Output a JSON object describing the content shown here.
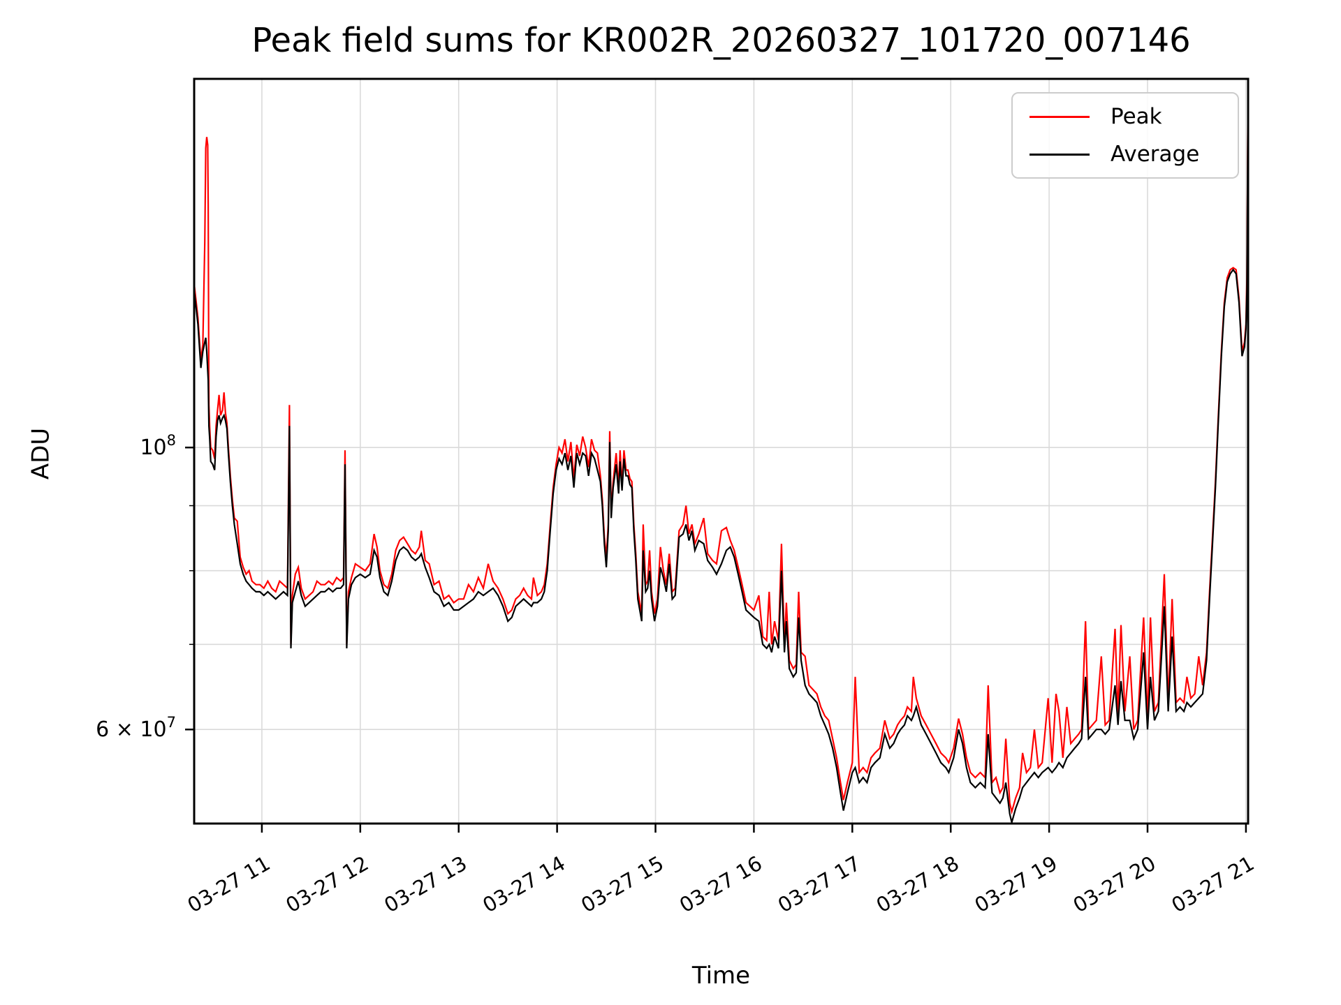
{
  "chart_data": {
    "type": "line",
    "title": "Peak field sums for KR002R_20260327_101720_007146",
    "xlabel": "Time",
    "ylabel": "ADU",
    "yscale": "log",
    "grid": true,
    "legend_position": "upper right",
    "xlim_hours": [
      10.312,
      21.022
    ],
    "ylim": [
      50600000,
      195000000
    ],
    "x_ticks": [
      {
        "v": 11,
        "label": "03-27 11"
      },
      {
        "v": 12,
        "label": "03-27 12"
      },
      {
        "v": 13,
        "label": "03-27 13"
      },
      {
        "v": 14,
        "label": "03-27 14"
      },
      {
        "v": 15,
        "label": "03-27 15"
      },
      {
        "v": 16,
        "label": "03-27 16"
      },
      {
        "v": 17,
        "label": "03-27 17"
      },
      {
        "v": 18,
        "label": "03-27 18"
      },
      {
        "v": 19,
        "label": "03-27 19"
      },
      {
        "v": 20,
        "label": "03-27 20"
      },
      {
        "v": 21,
        "label": "03-27 21"
      }
    ],
    "y_major_ticks": [
      {
        "v": 100000000,
        "label": "10^8"
      },
      {
        "v": 60000000,
        "label": "6 × 10^7"
      }
    ],
    "y_minor_ticks": [
      70000000,
      80000000,
      90000000
    ],
    "grid_y_values": [
      100000000,
      90000000,
      80000000,
      70000000,
      60000000
    ],
    "grid_color": "#dadada",
    "value_scale": 10000000,
    "series": [
      {
        "name": "Peak",
        "color": "#ff0000"
      },
      {
        "name": "Average",
        "color": "#000000"
      }
    ],
    "points": [
      [
        10.312,
        13.3,
        13.45
      ],
      [
        10.35,
        12.5,
        12.65
      ],
      [
        10.38,
        11.55,
        11.7
      ],
      [
        10.4,
        11.9,
        12.05
      ],
      [
        10.42,
        12.1,
        14.5
      ],
      [
        10.43,
        12.2,
        17.2
      ],
      [
        10.44,
        11.9,
        17.55
      ],
      [
        10.45,
        11.5,
        17.3
      ],
      [
        10.455,
        11.3,
        15.5
      ],
      [
        10.462,
        10.4,
        10.8
      ],
      [
        10.47,
        10.15,
        10.35
      ],
      [
        10.48,
        9.75,
        10.0
      ],
      [
        10.5,
        9.7,
        9.95
      ],
      [
        10.52,
        9.6,
        9.8
      ],
      [
        10.535,
        10.2,
        10.4
      ],
      [
        10.55,
        10.5,
        10.7
      ],
      [
        10.565,
        10.6,
        11.0
      ],
      [
        10.58,
        10.45,
        10.6
      ],
      [
        10.6,
        10.55,
        10.7
      ],
      [
        10.615,
        10.6,
        11.05
      ],
      [
        10.63,
        10.5,
        10.65
      ],
      [
        10.645,
        10.35,
        10.45
      ],
      [
        10.66,
        9.9,
        10.0
      ],
      [
        10.68,
        9.4,
        9.5
      ],
      [
        10.7,
        9.0,
        9.1
      ],
      [
        10.72,
        8.7,
        8.8
      ],
      [
        10.75,
        8.4,
        8.75
      ],
      [
        10.78,
        8.1,
        8.2
      ],
      [
        10.81,
        7.95,
        8.05
      ],
      [
        10.84,
        7.85,
        7.95
      ],
      [
        10.87,
        7.8,
        8.0
      ],
      [
        10.9,
        7.75,
        7.85
      ],
      [
        10.94,
        7.7,
        7.8
      ],
      [
        10.98,
        7.7,
        7.8
      ],
      [
        11.02,
        7.65,
        7.75
      ],
      [
        11.06,
        7.7,
        7.85
      ],
      [
        11.1,
        7.65,
        7.75
      ],
      [
        11.14,
        7.6,
        7.7
      ],
      [
        11.18,
        7.65,
        7.85
      ],
      [
        11.22,
        7.7,
        7.8
      ],
      [
        11.26,
        7.65,
        7.75
      ],
      [
        11.28,
        10.4,
        10.8
      ],
      [
        11.295,
        6.95,
        7.0
      ],
      [
        11.31,
        7.55,
        7.65
      ],
      [
        11.34,
        7.7,
        7.95
      ],
      [
        11.37,
        7.85,
        8.05
      ],
      [
        11.4,
        7.65,
        7.75
      ],
      [
        11.44,
        7.5,
        7.6
      ],
      [
        11.48,
        7.55,
        7.65
      ],
      [
        11.52,
        7.6,
        7.7
      ],
      [
        11.56,
        7.65,
        7.85
      ],
      [
        11.6,
        7.7,
        7.8
      ],
      [
        11.64,
        7.7,
        7.8
      ],
      [
        11.68,
        7.75,
        7.85
      ],
      [
        11.72,
        7.7,
        7.8
      ],
      [
        11.76,
        7.75,
        7.9
      ],
      [
        11.8,
        7.75,
        7.85
      ],
      [
        11.83,
        7.8,
        7.9
      ],
      [
        11.845,
        9.7,
        9.95
      ],
      [
        11.862,
        6.95,
        7.0
      ],
      [
        11.88,
        7.6,
        7.7
      ],
      [
        11.91,
        7.8,
        7.9
      ],
      [
        11.95,
        7.9,
        8.1
      ],
      [
        12.0,
        7.95,
        8.05
      ],
      [
        12.05,
        7.9,
        8.0
      ],
      [
        12.1,
        7.95,
        8.1
      ],
      [
        12.14,
        8.3,
        8.55
      ],
      [
        12.17,
        8.2,
        8.35
      ],
      [
        12.2,
        7.9,
        8.0
      ],
      [
        12.24,
        7.7,
        7.8
      ],
      [
        12.28,
        7.65,
        7.75
      ],
      [
        12.32,
        7.85,
        7.95
      ],
      [
        12.36,
        8.15,
        8.3
      ],
      [
        12.4,
        8.3,
        8.45
      ],
      [
        12.44,
        8.35,
        8.5
      ],
      [
        12.48,
        8.3,
        8.4
      ],
      [
        12.52,
        8.2,
        8.3
      ],
      [
        12.56,
        8.15,
        8.25
      ],
      [
        12.6,
        8.2,
        8.35
      ],
      [
        12.62,
        8.25,
        8.6
      ],
      [
        12.66,
        8.05,
        8.15
      ],
      [
        12.7,
        7.9,
        8.1
      ],
      [
        12.75,
        7.7,
        7.8
      ],
      [
        12.8,
        7.65,
        7.85
      ],
      [
        12.85,
        7.5,
        7.6
      ],
      [
        12.9,
        7.55,
        7.65
      ],
      [
        12.95,
        7.45,
        7.55
      ],
      [
        13.0,
        7.45,
        7.6
      ],
      [
        13.05,
        7.5,
        7.6
      ],
      [
        13.1,
        7.55,
        7.8
      ],
      [
        13.15,
        7.6,
        7.7
      ],
      [
        13.2,
        7.7,
        7.9
      ],
      [
        13.25,
        7.65,
        7.75
      ],
      [
        13.3,
        7.7,
        8.1
      ],
      [
        13.35,
        7.75,
        7.85
      ],
      [
        13.4,
        7.65,
        7.75
      ],
      [
        13.45,
        7.5,
        7.6
      ],
      [
        13.5,
        7.3,
        7.4
      ],
      [
        13.54,
        7.35,
        7.45
      ],
      [
        13.58,
        7.5,
        7.6
      ],
      [
        13.62,
        7.55,
        7.65
      ],
      [
        13.66,
        7.6,
        7.75
      ],
      [
        13.7,
        7.55,
        7.65
      ],
      [
        13.74,
        7.5,
        7.6
      ],
      [
        13.76,
        7.55,
        7.9
      ],
      [
        13.8,
        7.55,
        7.65
      ],
      [
        13.84,
        7.6,
        7.7
      ],
      [
        13.87,
        7.7,
        7.8
      ],
      [
        13.9,
        8.0,
        8.1
      ],
      [
        13.93,
        8.6,
        8.7
      ],
      [
        13.96,
        9.2,
        9.3
      ],
      [
        13.99,
        9.6,
        9.7
      ],
      [
        14.02,
        9.8,
        10.0
      ],
      [
        14.05,
        9.7,
        9.9
      ],
      [
        14.08,
        9.9,
        10.15
      ],
      [
        14.11,
        9.6,
        9.75
      ],
      [
        14.14,
        9.85,
        10.1
      ],
      [
        14.17,
        9.3,
        9.45
      ],
      [
        14.2,
        9.9,
        10.05
      ],
      [
        14.23,
        9.7,
        9.85
      ],
      [
        14.26,
        9.9,
        10.2
      ],
      [
        14.29,
        9.85,
        10.0
      ],
      [
        14.32,
        9.5,
        9.65
      ],
      [
        14.35,
        9.9,
        10.15
      ],
      [
        14.38,
        9.8,
        9.95
      ],
      [
        14.41,
        9.6,
        9.9
      ],
      [
        14.44,
        9.4,
        9.5
      ],
      [
        14.46,
        9.0,
        9.1
      ],
      [
        14.48,
        8.4,
        8.5
      ],
      [
        14.5,
        8.05,
        8.2
      ],
      [
        14.52,
        8.6,
        8.7
      ],
      [
        14.535,
        10.1,
        10.3
      ],
      [
        14.55,
        8.8,
        8.9
      ],
      [
        14.57,
        9.3,
        9.4
      ],
      [
        14.6,
        9.7,
        9.9
      ],
      [
        14.625,
        9.2,
        9.3
      ],
      [
        14.64,
        9.75,
        9.95
      ],
      [
        14.66,
        9.25,
        9.35
      ],
      [
        14.68,
        9.8,
        9.95
      ],
      [
        14.7,
        9.5,
        9.6
      ],
      [
        14.72,
        9.5,
        9.6
      ],
      [
        14.74,
        9.35,
        9.45
      ],
      [
        14.76,
        9.3,
        9.4
      ],
      [
        14.78,
        8.6,
        8.7
      ],
      [
        14.8,
        8.15,
        8.25
      ],
      [
        14.82,
        7.6,
        7.7
      ],
      [
        14.84,
        7.45,
        7.55
      ],
      [
        14.86,
        7.3,
        7.4
      ],
      [
        14.875,
        8.3,
        8.7
      ],
      [
        14.9,
        7.7,
        7.8
      ],
      [
        14.92,
        7.75,
        7.85
      ],
      [
        14.94,
        8.0,
        8.3
      ],
      [
        14.96,
        7.6,
        7.7
      ],
      [
        14.99,
        7.3,
        7.4
      ],
      [
        15.02,
        7.5,
        7.6
      ],
      [
        15.05,
        8.05,
        8.35
      ],
      [
        15.08,
        7.9,
        8.0
      ],
      [
        15.11,
        7.7,
        7.8
      ],
      [
        15.14,
        8.1,
        8.25
      ],
      [
        15.17,
        7.6,
        7.7
      ],
      [
        15.2,
        7.65,
        7.75
      ],
      [
        15.24,
        8.5,
        8.6
      ],
      [
        15.28,
        8.55,
        8.7
      ],
      [
        15.31,
        8.7,
        9.0
      ],
      [
        15.34,
        8.45,
        8.55
      ],
      [
        15.37,
        8.6,
        8.7
      ],
      [
        15.4,
        8.3,
        8.4
      ],
      [
        15.44,
        8.45,
        8.55
      ],
      [
        15.49,
        8.4,
        8.8
      ],
      [
        15.53,
        8.15,
        8.25
      ],
      [
        15.58,
        8.05,
        8.15
      ],
      [
        15.62,
        7.95,
        8.1
      ],
      [
        15.67,
        8.1,
        8.6
      ],
      [
        15.72,
        8.3,
        8.65
      ],
      [
        15.76,
        8.35,
        8.45
      ],
      [
        15.8,
        8.2,
        8.3
      ],
      [
        15.84,
        7.95,
        8.05
      ],
      [
        15.88,
        7.7,
        7.8
      ],
      [
        15.92,
        7.45,
        7.55
      ],
      [
        15.96,
        7.4,
        7.5
      ],
      [
        16.0,
        7.35,
        7.45
      ],
      [
        16.05,
        7.3,
        7.65
      ],
      [
        16.09,
        7.0,
        7.1
      ],
      [
        16.13,
        6.95,
        7.05
      ],
      [
        16.155,
        7.0,
        7.7
      ],
      [
        16.18,
        6.9,
        7.0
      ],
      [
        16.21,
        7.1,
        7.3
      ],
      [
        16.25,
        6.95,
        7.05
      ],
      [
        16.28,
        8.0,
        8.4
      ],
      [
        16.31,
        6.9,
        7.0
      ],
      [
        16.33,
        7.3,
        7.55
      ],
      [
        16.36,
        6.7,
        6.8
      ],
      [
        16.4,
        6.6,
        6.7
      ],
      [
        16.43,
        6.65,
        6.75
      ],
      [
        16.455,
        7.35,
        7.7
      ],
      [
        16.48,
        6.8,
        6.9
      ],
      [
        16.52,
        6.5,
        6.85
      ],
      [
        16.56,
        6.4,
        6.5
      ],
      [
        16.6,
        6.35,
        6.45
      ],
      [
        16.64,
        6.3,
        6.4
      ],
      [
        16.68,
        6.15,
        6.25
      ],
      [
        16.72,
        6.05,
        6.15
      ],
      [
        16.76,
        5.95,
        6.1
      ],
      [
        16.8,
        5.8,
        5.9
      ],
      [
        16.84,
        5.6,
        5.7
      ],
      [
        16.88,
        5.35,
        5.45
      ],
      [
        16.91,
        5.18,
        5.28
      ],
      [
        16.95,
        5.35,
        5.45
      ],
      [
        17.0,
        5.55,
        5.65
      ],
      [
        17.03,
        5.6,
        6.6
      ],
      [
        17.07,
        5.45,
        5.55
      ],
      [
        17.11,
        5.5,
        5.6
      ],
      [
        17.15,
        5.45,
        5.55
      ],
      [
        17.19,
        5.6,
        5.7
      ],
      [
        17.23,
        5.65,
        5.75
      ],
      [
        17.28,
        5.7,
        5.8
      ],
      [
        17.33,
        5.95,
        6.1
      ],
      [
        17.38,
        5.8,
        5.9
      ],
      [
        17.42,
        5.85,
        5.95
      ],
      [
        17.46,
        5.95,
        6.05
      ],
      [
        17.49,
        6.0,
        6.1
      ],
      [
        17.53,
        6.05,
        6.15
      ],
      [
        17.56,
        6.15,
        6.25
      ],
      [
        17.6,
        6.1,
        6.2
      ],
      [
        17.62,
        6.15,
        6.6
      ],
      [
        17.65,
        6.25,
        6.35
      ],
      [
        17.7,
        6.05,
        6.15
      ],
      [
        17.75,
        5.95,
        6.05
      ],
      [
        17.8,
        5.85,
        5.95
      ],
      [
        17.85,
        5.75,
        5.85
      ],
      [
        17.9,
        5.65,
        5.75
      ],
      [
        17.95,
        5.6,
        5.7
      ],
      [
        17.98,
        5.55,
        5.65
      ],
      [
        18.03,
        5.7,
        5.8
      ],
      [
        18.08,
        6.0,
        6.12
      ],
      [
        18.12,
        5.85,
        5.95
      ],
      [
        18.16,
        5.6,
        5.7
      ],
      [
        18.2,
        5.45,
        5.55
      ],
      [
        18.25,
        5.4,
        5.5
      ],
      [
        18.3,
        5.45,
        5.55
      ],
      [
        18.35,
        5.4,
        5.5
      ],
      [
        18.38,
        5.95,
        6.5
      ],
      [
        18.42,
        5.35,
        5.45
      ],
      [
        18.46,
        5.3,
        5.5
      ],
      [
        18.5,
        5.25,
        5.35
      ],
      [
        18.53,
        5.3,
        5.4
      ],
      [
        18.56,
        5.45,
        5.9
      ],
      [
        18.6,
        5.15,
        5.25
      ],
      [
        18.62,
        5.07,
        5.17
      ],
      [
        18.66,
        5.2,
        5.3
      ],
      [
        18.7,
        5.3,
        5.4
      ],
      [
        18.73,
        5.4,
        5.75
      ],
      [
        18.77,
        5.45,
        5.55
      ],
      [
        18.81,
        5.5,
        5.6
      ],
      [
        18.85,
        5.55,
        6.0
      ],
      [
        18.89,
        5.5,
        5.6
      ],
      [
        18.93,
        5.55,
        5.65
      ],
      [
        18.99,
        5.6,
        6.35
      ],
      [
        19.03,
        5.55,
        5.65
      ],
      [
        19.07,
        5.6,
        6.4
      ],
      [
        19.1,
        5.65,
        6.2
      ],
      [
        19.14,
        5.6,
        5.7
      ],
      [
        19.18,
        5.7,
        6.25
      ],
      [
        19.22,
        5.75,
        5.85
      ],
      [
        19.26,
        5.8,
        5.9
      ],
      [
        19.3,
        5.85,
        5.95
      ],
      [
        19.33,
        5.9,
        6.0
      ],
      [
        19.37,
        6.6,
        7.3
      ],
      [
        19.4,
        5.9,
        6.0
      ],
      [
        19.44,
        5.95,
        6.05
      ],
      [
        19.48,
        6.0,
        6.1
      ],
      [
        19.53,
        6.0,
        6.85
      ],
      [
        19.57,
        5.95,
        6.05
      ],
      [
        19.61,
        6.0,
        6.1
      ],
      [
        19.67,
        6.5,
        7.2
      ],
      [
        19.7,
        6.05,
        6.15
      ],
      [
        19.73,
        6.55,
        7.25
      ],
      [
        19.77,
        6.1,
        6.2
      ],
      [
        19.82,
        6.1,
        6.85
      ],
      [
        19.86,
        5.9,
        6.0
      ],
      [
        19.9,
        6.0,
        6.1
      ],
      [
        19.96,
        6.9,
        7.35
      ],
      [
        20.0,
        6.0,
        6.1
      ],
      [
        20.03,
        6.6,
        7.35
      ],
      [
        20.07,
        6.1,
        6.2
      ],
      [
        20.11,
        6.2,
        6.3
      ],
      [
        20.17,
        7.5,
        7.95
      ],
      [
        20.21,
        6.2,
        6.3
      ],
      [
        20.25,
        7.1,
        7.6
      ],
      [
        20.29,
        6.2,
        6.3
      ],
      [
        20.33,
        6.25,
        6.35
      ],
      [
        20.37,
        6.2,
        6.3
      ],
      [
        20.4,
        6.3,
        6.6
      ],
      [
        20.44,
        6.25,
        6.35
      ],
      [
        20.48,
        6.3,
        6.4
      ],
      [
        20.52,
        6.35,
        6.85
      ],
      [
        20.56,
        6.4,
        6.5
      ],
      [
        20.6,
        6.8,
        6.9
      ],
      [
        20.63,
        7.6,
        7.7
      ],
      [
        20.66,
        8.4,
        8.5
      ],
      [
        20.69,
        9.3,
        9.4
      ],
      [
        20.72,
        10.5,
        10.6
      ],
      [
        20.75,
        11.8,
        11.9
      ],
      [
        20.78,
        12.9,
        13.0
      ],
      [
        20.81,
        13.5,
        13.6
      ],
      [
        20.84,
        13.7,
        13.8
      ],
      [
        20.87,
        13.8,
        13.85
      ],
      [
        20.9,
        13.7,
        13.8
      ],
      [
        20.93,
        13.0,
        13.1
      ],
      [
        20.96,
        11.8,
        11.9
      ],
      [
        20.985,
        12.0,
        12.1
      ],
      [
        21.0,
        12.4,
        12.5
      ],
      [
        21.01,
        13.3,
        13.6
      ],
      [
        21.022,
        19.3,
        19.6
      ]
    ]
  }
}
